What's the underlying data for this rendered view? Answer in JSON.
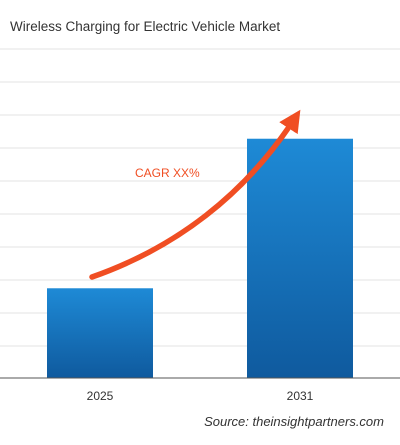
{
  "chart_data": {
    "type": "bar",
    "title": "Wireless Charging for Electric Vehicle Market",
    "categories": [
      "2025",
      "2031"
    ],
    "values": [
      3,
      8
    ],
    "ylim": [
      0,
      11
    ],
    "grid": true,
    "annotation": "CAGR XX%",
    "source": "Source: theinsightpartners.com",
    "colors": {
      "bar_top": "#1e8ad6",
      "bar_bottom": "#0f5a9e",
      "arrow": "#f04e23",
      "annotation": "#f04e23",
      "grid": "#e3e3e3",
      "axis": "#555555",
      "text": "#333333"
    }
  }
}
